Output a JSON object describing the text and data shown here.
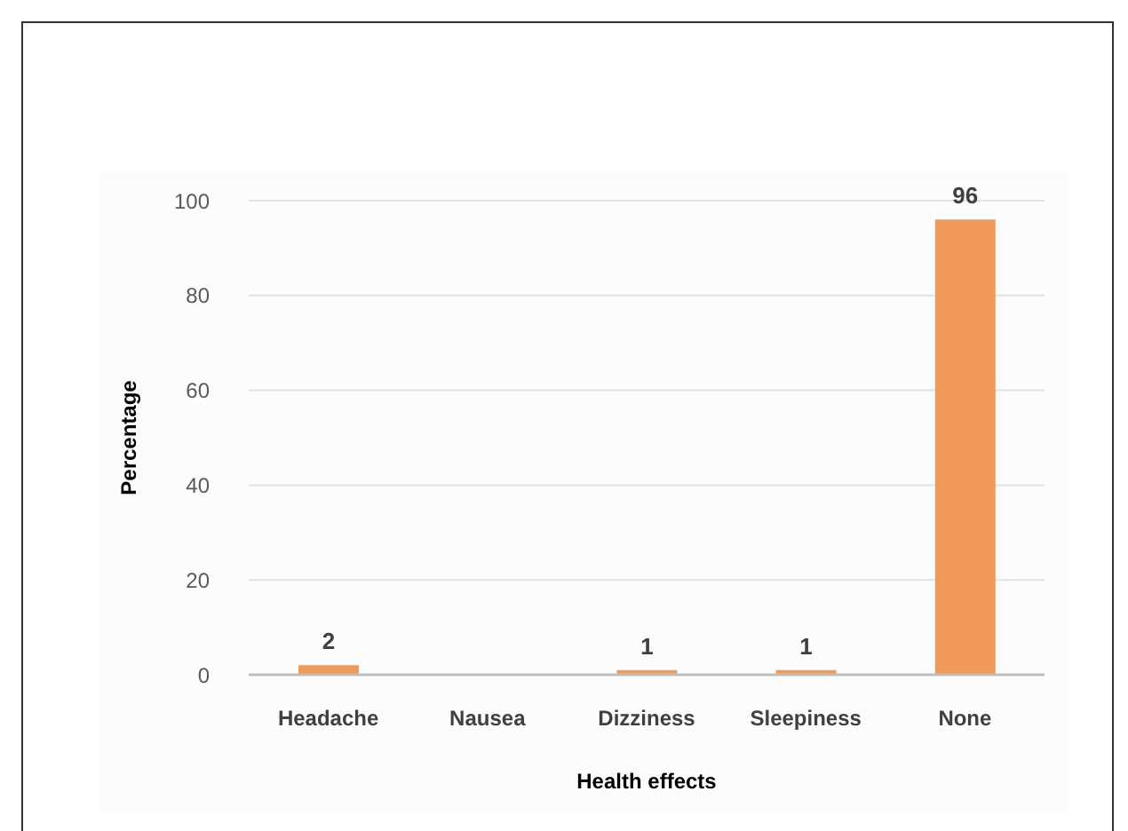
{
  "chart_data": {
    "type": "bar",
    "xlabel": "Health effects",
    "ylabel": "Percentage",
    "categories": [
      "Headache",
      "Nausea",
      "Dizziness",
      "Sleepiness",
      "None"
    ],
    "values": [
      2,
      0,
      1,
      1,
      96
    ],
    "value_labels": [
      "2",
      null,
      "1",
      "1",
      "96"
    ],
    "color": "#f09a5a",
    "ylim": [
      0,
      100
    ],
    "yticks": [
      0,
      20,
      40,
      60,
      80,
      100
    ],
    "grid": "y",
    "legend": false
  }
}
